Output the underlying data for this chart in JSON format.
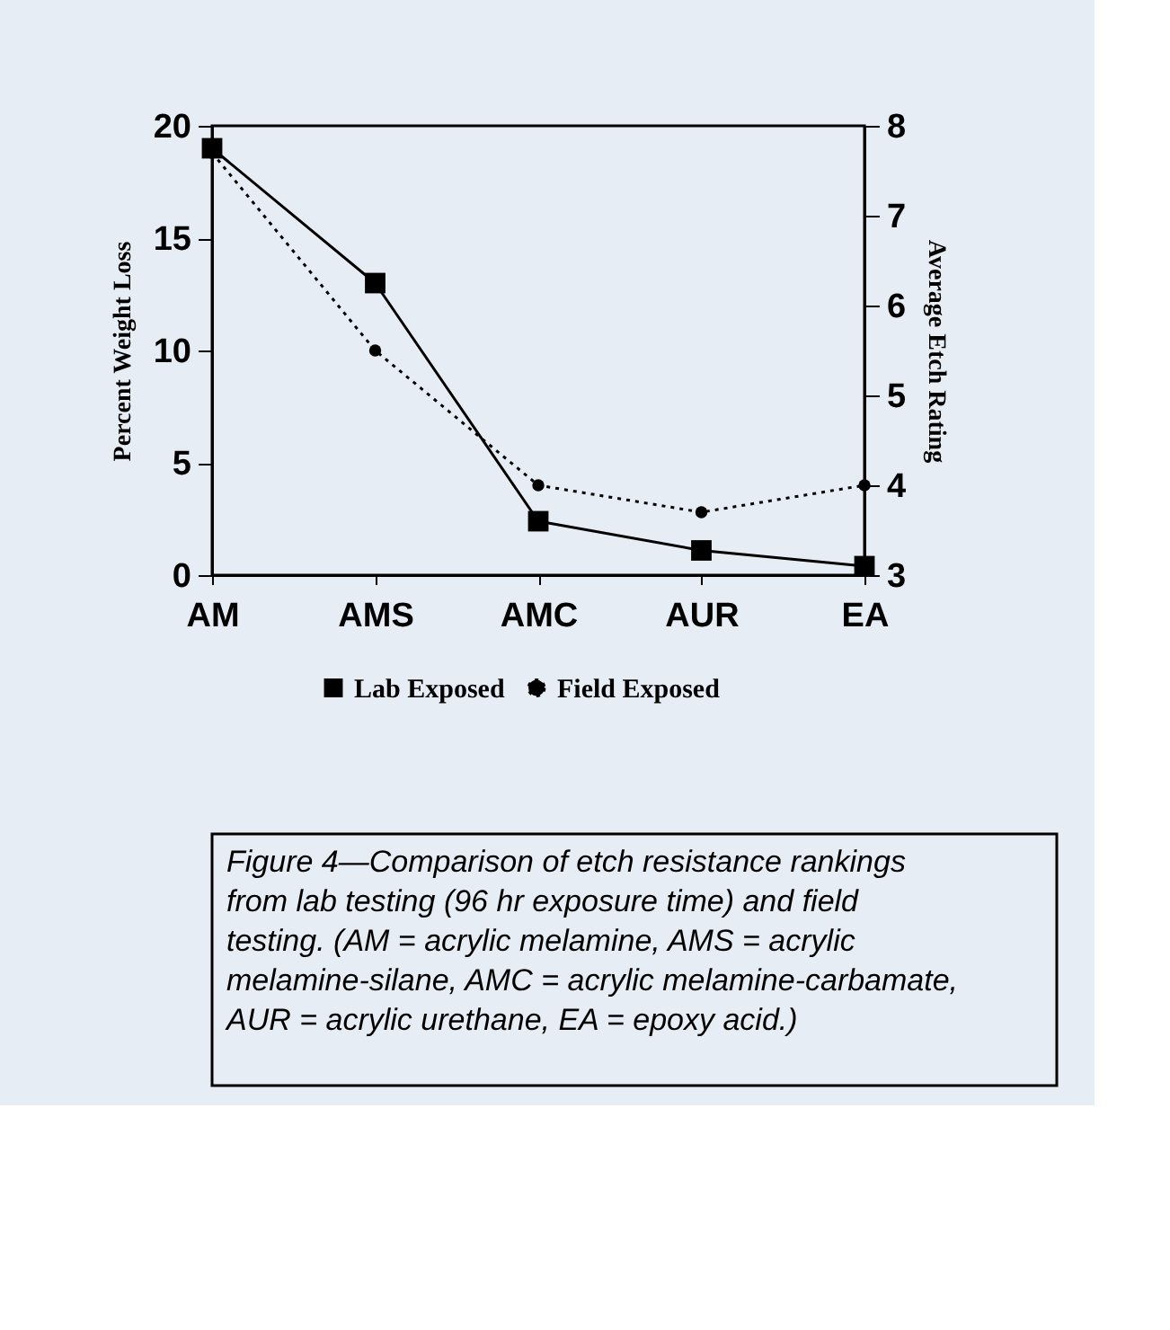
{
  "chart_data": {
    "type": "line",
    "categories": [
      "AM",
      "AMS",
      "AMC",
      "AUR",
      "EA"
    ],
    "series": [
      {
        "name": "Lab Exposed",
        "color": "#000000",
        "line_style": "solid",
        "marker": "square",
        "values": [
          19,
          13,
          2.4,
          1.1,
          0.4
        ]
      },
      {
        "name": "Field Exposed",
        "color": "#000000",
        "line_style": "dotted",
        "marker": "circle",
        "axis": "y2",
        "values": [
          7.7,
          5.5,
          4.0,
          3.7,
          4.0
        ]
      }
    ],
    "ylabel": "Percent Weight Loss",
    "y2label": "Average Etch Rating",
    "ylim": [
      0,
      20
    ],
    "yticks": [
      0,
      5,
      10,
      15,
      20
    ],
    "y2lim": [
      3,
      8
    ],
    "y2ticks": [
      3,
      4,
      5,
      6,
      7,
      8
    ],
    "grid": false,
    "legend": "bottom",
    "annotations": [
      "Figure 4—Comparison of etch resistance rankings from lab testing (96 hr exposure time) and field testing. (AM = acrylic melamine, AMS = acrylic melamine-silane, AMC = acrylic melamine-carbamate, AUR = acrylic urethane, EA = epoxy acid.)"
    ]
  }
}
